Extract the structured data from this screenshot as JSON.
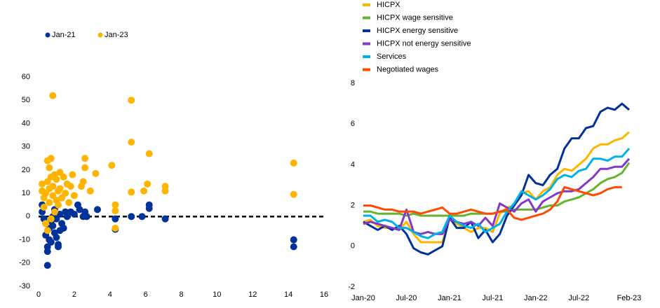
{
  "chart_data": [
    {
      "type": "scatter",
      "series": [
        {
          "name": "Jan-21",
          "color": "#003299",
          "x": [
            0.2,
            0.2,
            0.3,
            0.4,
            0.4,
            0.5,
            0.5,
            0.5,
            0.6,
            0.6,
            0.7,
            0.7,
            0.8,
            0.8,
            0.9,
            0.9,
            1.0,
            1.0,
            1.1,
            1.1,
            1.2,
            1.2,
            1.3,
            1.4,
            1.5,
            1.6,
            1.8,
            2.0,
            2.2,
            2.3,
            2.5,
            2.6,
            2.7,
            3.3,
            4.3,
            4.3,
            5.2,
            5.8,
            6.2,
            6.2,
            7.1,
            14.3,
            14.3
          ],
          "y": [
            5,
            2,
            -1,
            -3,
            -8,
            -21,
            -13,
            -15,
            -5,
            -10,
            -2,
            -11,
            -4,
            0,
            -7,
            3,
            -9,
            -1,
            -13,
            -12,
            -6,
            1,
            -3,
            -5,
            2,
            0,
            2,
            1,
            5,
            3,
            0,
            2,
            0,
            3,
            -1,
            -5.5,
            0,
            0,
            5,
            3.5,
            -1,
            -10,
            -13
          ]
        },
        {
          "name": "Jan-23",
          "color": "#ffb400",
          "x": [
            0.2,
            0.2,
            0.3,
            0.3,
            0.4,
            0.4,
            0.5,
            0.5,
            0.5,
            0.6,
            0.6,
            0.6,
            0.7,
            0.7,
            0.7,
            0.8,
            0.8,
            0.8,
            0.9,
            0.9,
            1.0,
            1.0,
            1.1,
            1.1,
            1.2,
            1.2,
            1.3,
            1.4,
            1.5,
            1.6,
            1.7,
            1.8,
            1.9,
            2.0,
            2.4,
            2.5,
            2.6,
            2.6,
            2.9,
            3.2,
            4.1,
            4.3,
            4.3,
            4.3,
            5.2,
            5.2,
            5.2,
            5.9,
            6.1,
            6.2,
            7.1,
            7.1,
            14.3,
            14.3
          ],
          "y": [
            14,
            11,
            4,
            8,
            -3,
            10,
            24,
            15,
            -6,
            21,
            6,
            12,
            25,
            17,
            -1,
            52,
            9,
            13,
            18,
            2,
            16,
            7,
            5,
            11,
            19,
            12,
            8,
            17,
            10,
            14,
            6,
            13,
            18,
            9,
            13,
            15,
            25,
            21,
            11,
            18.5,
            22,
            5,
            2.5,
            -5,
            50,
            32,
            10.5,
            11,
            14,
            27,
            13,
            11,
            23,
            9.5
          ]
        }
      ],
      "xlim": [
        0,
        16
      ],
      "xticks": [
        0,
        2,
        4,
        6,
        8,
        10,
        12,
        14,
        16
      ],
      "ylim": [
        -30,
        60
      ],
      "yticks": [
        -30,
        -20,
        -10,
        0,
        10,
        20,
        30,
        40,
        50,
        60
      ],
      "zero_line": true
    },
    {
      "type": "line",
      "categories": [
        "Jan-20",
        null,
        null,
        null,
        null,
        null,
        "Jul-20",
        null,
        null,
        null,
        null,
        null,
        "Jan-21",
        null,
        null,
        null,
        null,
        null,
        "Jul-21",
        null,
        null,
        null,
        null,
        null,
        "Jan-22",
        null,
        null,
        null,
        null,
        null,
        "Jul-22",
        null,
        null,
        null,
        null,
        null,
        null,
        "Feb-23"
      ],
      "series": [
        {
          "name": "HICPX",
          "color": "#ffb400",
          "values": [
            1.2,
            1.3,
            1.0,
            0.9,
            0.9,
            0.8,
            1.2,
            0.6,
            0.2,
            0.2,
            0.2,
            0.2,
            1.4,
            1.1,
            0.9,
            0.7,
            0.9,
            0.9,
            0.7,
            1.6,
            1.9,
            2.0,
            2.6,
            2.7,
            2.3,
            2.7,
            2.9,
            3.5,
            3.8,
            3.7,
            4.0,
            4.3,
            4.8,
            5.0,
            5.0,
            5.2,
            5.3,
            5.6
          ]
        },
        {
          "name": "HICPX wage sensitive",
          "color": "#65b32e",
          "values": [
            1.7,
            1.7,
            1.6,
            1.6,
            1.6,
            1.6,
            1.5,
            1.6,
            1.5,
            1.5,
            1.5,
            1.5,
            1.5,
            1.5,
            1.5,
            1.6,
            1.6,
            1.6,
            1.6,
            1.7,
            1.7,
            1.8,
            1.8,
            1.8,
            1.8,
            1.9,
            2.0,
            2.0,
            2.2,
            2.3,
            2.4,
            2.6,
            2.8,
            3.1,
            3.3,
            3.4,
            3.6,
            4.1
          ]
        },
        {
          "name": "HICPX energy sensitive",
          "color": "#003299",
          "values": [
            1.2,
            1.0,
            0.8,
            1.0,
            0.8,
            1.0,
            0.6,
            -0.1,
            -0.3,
            -0.4,
            -0.2,
            0.0,
            1.4,
            0.9,
            0.9,
            1.2,
            0.4,
            0.8,
            0.2,
            0.6,
            1.5,
            2.0,
            2.5,
            3.5,
            3.1,
            3.0,
            3.5,
            3.8,
            4.8,
            5.3,
            5.3,
            5.8,
            5.9,
            6.6,
            6.8,
            6.7,
            7.0,
            6.7
          ]
        },
        {
          "name": "HICPX not energy sensitive",
          "color": "#8139c6",
          "values": [
            1.1,
            1.2,
            1.1,
            1.0,
            0.9,
            0.8,
            1.8,
            0.7,
            0.6,
            0.7,
            0.6,
            0.6,
            1.3,
            1.2,
            1.1,
            1.2,
            1.0,
            1.4,
            1.0,
            2.1,
            1.9,
            1.7,
            2.1,
            2.3,
            1.7,
            2.2,
            2.4,
            2.6,
            2.7,
            2.7,
            2.8,
            3.1,
            3.4,
            3.8,
            3.8,
            3.9,
            3.9,
            4.3
          ]
        },
        {
          "name": "Services",
          "color": "#00b1ea",
          "values": [
            1.5,
            1.5,
            1.2,
            1.3,
            1.2,
            0.9,
            0.9,
            0.7,
            0.5,
            0.4,
            0.6,
            0.7,
            1.5,
            1.2,
            1.0,
            0.9,
            1.1,
            0.7,
            0.9,
            1.1,
            1.7,
            2.1,
            2.7,
            2.5,
            2.3,
            2.5,
            2.8,
            3.3,
            3.5,
            3.4,
            3.7,
            3.8,
            4.3,
            4.3,
            4.2,
            4.4,
            4.4,
            4.8
          ]
        },
        {
          "name": "Negotiated wages",
          "color": "#ff4b00",
          "values": [
            2.0,
            2.0,
            1.9,
            1.8,
            1.8,
            1.7,
            1.7,
            1.7,
            1.6,
            1.7,
            1.8,
            1.9,
            1.6,
            1.6,
            1.7,
            1.8,
            1.7,
            1.6,
            1.6,
            1.7,
            1.8,
            1.4,
            1.3,
            1.4,
            1.5,
            1.6,
            1.8,
            2.2,
            2.9,
            2.8,
            2.7,
            2.6,
            2.5,
            2.6,
            2.8,
            2.9,
            2.9,
            null
          ]
        }
      ],
      "ylim": [
        -2,
        8
      ],
      "yticks": [
        -2,
        0,
        2,
        4,
        6,
        8
      ]
    }
  ]
}
